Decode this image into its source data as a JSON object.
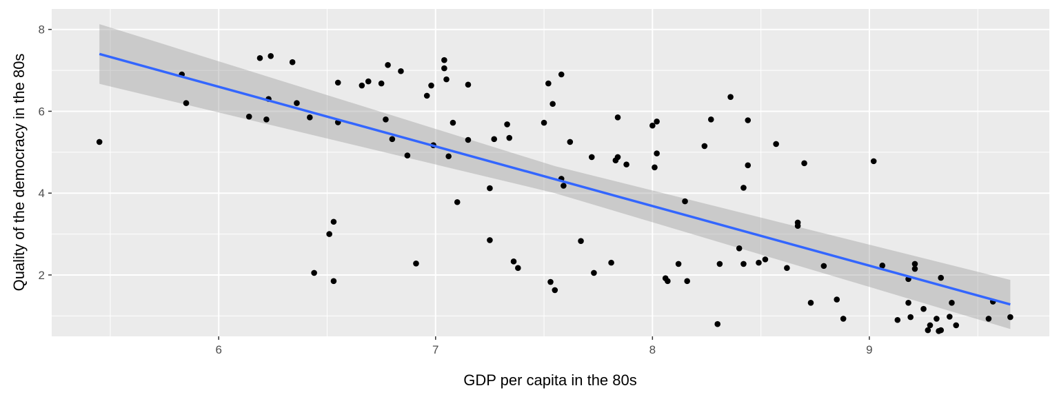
{
  "chart_data": {
    "type": "scatter",
    "xlabel": "GDP per capita in the 80s",
    "ylabel": "Quality of the democracy in the 80s",
    "xlim": [
      5.23,
      9.83
    ],
    "ylim": [
      0.5,
      8.5
    ],
    "xticks": [
      6,
      7,
      8,
      9
    ],
    "yticks": [
      2,
      4,
      6,
      8
    ],
    "grid": true,
    "points": [
      [
        5.45,
        5.25
      ],
      [
        5.83,
        6.9
      ],
      [
        5.85,
        6.2
      ],
      [
        6.14,
        5.87
      ],
      [
        6.19,
        7.3
      ],
      [
        6.22,
        5.8
      ],
      [
        6.23,
        6.3
      ],
      [
        6.24,
        7.35
      ],
      [
        6.34,
        7.2
      ],
      [
        6.36,
        6.2
      ],
      [
        6.42,
        5.85
      ],
      [
        6.44,
        2.05
      ],
      [
        6.51,
        3.0
      ],
      [
        6.53,
        1.85
      ],
      [
        6.53,
        3.3
      ],
      [
        6.55,
        5.73
      ],
      [
        6.55,
        6.7
      ],
      [
        6.66,
        6.63
      ],
      [
        6.69,
        6.73
      ],
      [
        6.75,
        6.68
      ],
      [
        6.77,
        5.8
      ],
      [
        6.78,
        7.13
      ],
      [
        6.8,
        5.32
      ],
      [
        6.84,
        6.98
      ],
      [
        6.87,
        4.92
      ],
      [
        6.91,
        2.28
      ],
      [
        6.96,
        6.38
      ],
      [
        6.98,
        6.63
      ],
      [
        6.99,
        5.17
      ],
      [
        7.04,
        7.25
      ],
      [
        7.04,
        7.05
      ],
      [
        7.05,
        6.78
      ],
      [
        7.06,
        4.9
      ],
      [
        7.08,
        5.72
      ],
      [
        7.1,
        3.78
      ],
      [
        7.15,
        5.3
      ],
      [
        7.15,
        6.65
      ],
      [
        7.25,
        4.12
      ],
      [
        7.25,
        2.85
      ],
      [
        7.27,
        5.32
      ],
      [
        7.33,
        5.68
      ],
      [
        7.34,
        5.35
      ],
      [
        7.36,
        2.33
      ],
      [
        7.38,
        2.17
      ],
      [
        7.5,
        5.72
      ],
      [
        7.52,
        6.68
      ],
      [
        7.53,
        1.83
      ],
      [
        7.54,
        6.18
      ],
      [
        7.55,
        1.63
      ],
      [
        7.58,
        4.35
      ],
      [
        7.58,
        6.9
      ],
      [
        7.59,
        4.18
      ],
      [
        7.62,
        5.25
      ],
      [
        7.67,
        2.83
      ],
      [
        7.72,
        4.88
      ],
      [
        7.73,
        2.05
      ],
      [
        7.81,
        2.3
      ],
      [
        7.83,
        4.8
      ],
      [
        7.84,
        5.85
      ],
      [
        7.84,
        4.88
      ],
      [
        7.88,
        4.7
      ],
      [
        8.0,
        5.65
      ],
      [
        8.01,
        4.63
      ],
      [
        8.02,
        5.75
      ],
      [
        8.02,
        4.97
      ],
      [
        8.06,
        1.92
      ],
      [
        8.07,
        1.85
      ],
      [
        8.12,
        2.27
      ],
      [
        8.15,
        3.8
      ],
      [
        8.16,
        1.85
      ],
      [
        8.24,
        5.15
      ],
      [
        8.27,
        5.8
      ],
      [
        8.3,
        0.8
      ],
      [
        8.31,
        2.27
      ],
      [
        8.36,
        6.35
      ],
      [
        8.4,
        2.65
      ],
      [
        8.42,
        4.13
      ],
      [
        8.42,
        2.27
      ],
      [
        8.44,
        5.78
      ],
      [
        8.44,
        4.68
      ],
      [
        8.49,
        2.3
      ],
      [
        8.52,
        2.38
      ],
      [
        8.57,
        5.2
      ],
      [
        8.62,
        2.17
      ],
      [
        8.67,
        3.28
      ],
      [
        8.67,
        3.2
      ],
      [
        8.7,
        4.73
      ],
      [
        8.73,
        1.32
      ],
      [
        8.79,
        2.22
      ],
      [
        8.85,
        1.4
      ],
      [
        8.88,
        0.93
      ],
      [
        9.02,
        4.78
      ],
      [
        9.06,
        2.23
      ],
      [
        9.13,
        0.9
      ],
      [
        9.18,
        1.9
      ],
      [
        9.18,
        1.32
      ],
      [
        9.19,
        0.97
      ],
      [
        9.21,
        2.27
      ],
      [
        9.21,
        2.15
      ],
      [
        9.25,
        1.17
      ],
      [
        9.27,
        0.65
      ],
      [
        9.28,
        0.77
      ],
      [
        9.31,
        0.93
      ],
      [
        9.32,
        0.63
      ],
      [
        9.33,
        1.93
      ],
      [
        9.33,
        0.65
      ],
      [
        9.37,
        0.98
      ],
      [
        9.38,
        1.32
      ],
      [
        9.4,
        0.77
      ],
      [
        9.55,
        0.93
      ],
      [
        9.57,
        1.35
      ],
      [
        9.65,
        0.97
      ]
    ],
    "trend": {
      "method": "linear",
      "x_range": [
        5.45,
        9.65
      ],
      "y_start": 7.4,
      "y_end": 1.28,
      "band": [
        [
          5.45,
          6.67,
          8.13
        ],
        [
          7.55,
          4.0,
          4.66
        ],
        [
          9.65,
          0.68,
          1.88
        ]
      ],
      "line_color": "#3366ff",
      "band_color": "#999999"
    },
    "colors": {
      "panel": "#ebebeb",
      "grid": "#ffffff",
      "point": "#000000"
    }
  }
}
